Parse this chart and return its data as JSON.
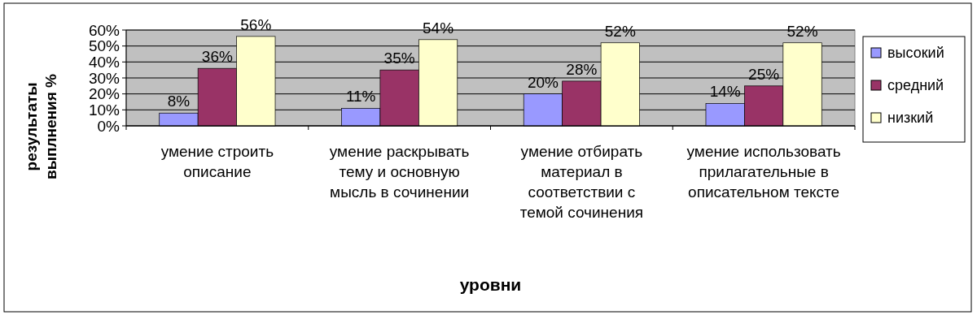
{
  "chart_data": {
    "type": "bar",
    "xlabel": "уровни",
    "ylabel": "результаты выплнения %",
    "categories": [
      "умение строить описание",
      "умение раскрывать тему и основную мысль в сочинении",
      "умение отбирать материал в соответствии с темой сочинения",
      "умение использовать прилагательные в описательном тексте"
    ],
    "series": [
      {
        "name": "высокий",
        "color": "#9999ff",
        "values": [
          8,
          11,
          20,
          14
        ],
        "value_labels": [
          "8%",
          "11%",
          "20%",
          "14%"
        ]
      },
      {
        "name": "средний",
        "color": "#993366",
        "values": [
          36,
          35,
          28,
          25
        ],
        "value_labels": [
          "36%",
          "35%",
          "28%",
          "25%"
        ]
      },
      {
        "name": "низкий",
        "color": "#ffffcc",
        "values": [
          56,
          54,
          52,
          52
        ],
        "value_labels": [
          "56%",
          "54%",
          "52%",
          "52%"
        ]
      }
    ],
    "ylim": [
      0,
      60
    ],
    "yticks": [
      {
        "value": 0,
        "label": "0%"
      },
      {
        "value": 10,
        "label": "10%"
      },
      {
        "value": 20,
        "label": "20%"
      },
      {
        "value": 30,
        "label": "30%"
      },
      {
        "value": 40,
        "label": "40%"
      },
      {
        "value": 50,
        "label": "50%"
      },
      {
        "value": 60,
        "label": "60%"
      }
    ],
    "grid": "y",
    "legend": "right"
  }
}
